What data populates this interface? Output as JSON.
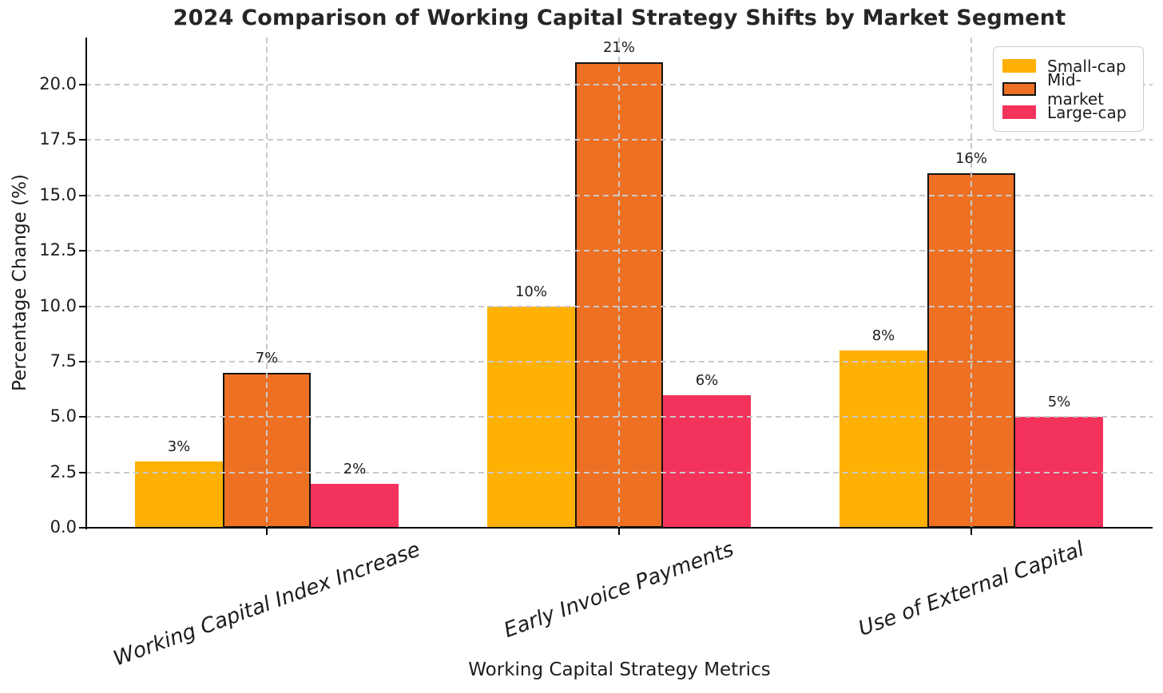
{
  "chart_data": {
    "type": "bar",
    "title": "2024 Comparison of Working Capital Strategy Shifts by Market Segment",
    "xlabel": "Working Capital Strategy Metrics",
    "ylabel": "Percentage Change (%)",
    "categories": [
      "Working Capital Index Increase",
      "Early Invoice Payments",
      "Use of External Capital"
    ],
    "series": [
      {
        "name": "Small-cap",
        "color": "#FFB005",
        "edge_color": null,
        "values": [
          3,
          10,
          8
        ]
      },
      {
        "name": "Mid-market",
        "color": "#EE7023",
        "edge_color": "#141414",
        "values": [
          7,
          21,
          16
        ]
      },
      {
        "name": "Large-cap",
        "color": "#F3335B",
        "edge_color": null,
        "values": [
          2,
          6,
          5
        ]
      }
    ],
    "value_label_suffix": "%",
    "bar_value_labels": [
      [
        "3%",
        "10%",
        "8%"
      ],
      [
        "7%",
        "21%",
        "16%"
      ],
      [
        "2%",
        "6%",
        "5%"
      ]
    ],
    "yticks": [
      0.0,
      2.5,
      5.0,
      7.5,
      10.0,
      12.5,
      15.0,
      17.5,
      20.0
    ],
    "ytick_labels": [
      "0.0",
      "2.5",
      "5.0",
      "7.5",
      "10.0",
      "12.5",
      "15.0",
      "17.5",
      "20.0"
    ],
    "ylim": [
      0,
      22.1
    ],
    "grid": true,
    "grid_style": "dashed",
    "grid_color": "#c9c9c9",
    "legend_position": "upper right",
    "legend_entries": [
      "Small-cap",
      "Mid-market",
      "Large-cap"
    ],
    "xtick_label_rotation_deg": 20
  }
}
